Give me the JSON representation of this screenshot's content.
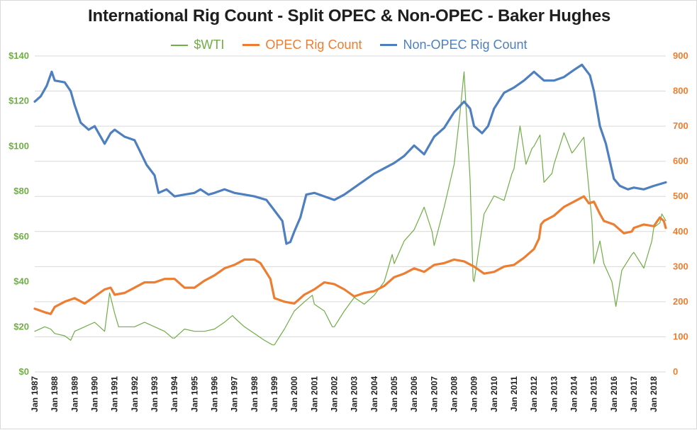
{
  "chart_data": {
    "type": "line",
    "title": "International Rig Count - Split OPEC & Non-OPEC - Baker Hughes",
    "x_tick_labels": [
      "Jan 1987",
      "Jan 1988",
      "Jan 1989",
      "Jan 1990",
      "Jan 1991",
      "Jan 1992",
      "Jan 1993",
      "Jan 1994",
      "Jan 1995",
      "Jan 1996",
      "Jan 1997",
      "Jan 1998",
      "Jan 1999",
      "Jan 2000",
      "Jan 2001",
      "Jan 2002",
      "Jan 2003",
      "Jan 2004",
      "Jan 2005",
      "Jan 2006",
      "Jan 2007",
      "Jan 2008",
      "Jan 2009",
      "Jan 2010",
      "Jan 2011",
      "Jan 2012",
      "Jan 2013",
      "Jan 2014",
      "Jan 2015",
      "Jan 2016",
      "Jan 2017",
      "Jan 2018"
    ],
    "x_range": [
      1987.0,
      2018.6
    ],
    "y_left": {
      "range": [
        0,
        140
      ],
      "ticks": [
        0,
        20,
        40,
        60,
        80,
        100,
        120,
        140
      ],
      "tick_labels": [
        "$0",
        "$20",
        "$40",
        "$60",
        "$80",
        "$100",
        "$120",
        "$140"
      ],
      "unit": "$"
    },
    "y_right": {
      "range": [
        0,
        900
      ],
      "ticks": [
        0,
        100,
        200,
        300,
        400,
        500,
        600,
        700,
        800,
        900
      ],
      "tick_labels": [
        "0",
        "100",
        "200",
        "300",
        "400",
        "500",
        "600",
        "700",
        "800",
        "900"
      ]
    },
    "series": [
      {
        "name": "$WTI",
        "axis": "left",
        "color": "#70ad47",
        "width": 1.2,
        "points": [
          [
            1987.0,
            18
          ],
          [
            1987.5,
            20
          ],
          [
            1987.8,
            19
          ],
          [
            1988.0,
            17
          ],
          [
            1988.5,
            16
          ],
          [
            1988.8,
            14
          ],
          [
            1989.0,
            18
          ],
          [
            1989.5,
            20
          ],
          [
            1990.0,
            22
          ],
          [
            1990.5,
            18
          ],
          [
            1990.75,
            35
          ],
          [
            1991.0,
            26
          ],
          [
            1991.2,
            20
          ],
          [
            1991.5,
            20
          ],
          [
            1992.0,
            20
          ],
          [
            1992.5,
            22
          ],
          [
            1993.0,
            20
          ],
          [
            1993.5,
            18
          ],
          [
            1993.9,
            15
          ],
          [
            1994.0,
            15
          ],
          [
            1994.5,
            19
          ],
          [
            1995.0,
            18
          ],
          [
            1995.5,
            18
          ],
          [
            1996.0,
            19
          ],
          [
            1996.5,
            22
          ],
          [
            1996.9,
            25
          ],
          [
            1997.0,
            24
          ],
          [
            1997.5,
            20
          ],
          [
            1998.0,
            17
          ],
          [
            1998.5,
            14
          ],
          [
            1998.9,
            12
          ],
          [
            1999.0,
            12
          ],
          [
            1999.5,
            19
          ],
          [
            2000.0,
            27
          ],
          [
            2000.5,
            31
          ],
          [
            2000.9,
            34
          ],
          [
            2001.0,
            30
          ],
          [
            2001.5,
            27
          ],
          [
            2001.9,
            20
          ],
          [
            2002.0,
            20
          ],
          [
            2002.5,
            27
          ],
          [
            2003.0,
            33
          ],
          [
            2003.5,
            30
          ],
          [
            2004.0,
            34
          ],
          [
            2004.5,
            40
          ],
          [
            2004.9,
            52
          ],
          [
            2005.0,
            48
          ],
          [
            2005.5,
            58
          ],
          [
            2006.0,
            63
          ],
          [
            2006.5,
            73
          ],
          [
            2006.9,
            62
          ],
          [
            2007.0,
            56
          ],
          [
            2007.5,
            73
          ],
          [
            2008.0,
            92
          ],
          [
            2008.3,
            115
          ],
          [
            2008.5,
            133
          ],
          [
            2008.8,
            85
          ],
          [
            2008.95,
            41
          ],
          [
            2009.0,
            40
          ],
          [
            2009.5,
            70
          ],
          [
            2010.0,
            78
          ],
          [
            2010.5,
            76
          ],
          [
            2010.9,
            88
          ],
          [
            2011.0,
            90
          ],
          [
            2011.3,
            109
          ],
          [
            2011.6,
            92
          ],
          [
            2011.9,
            99
          ],
          [
            2012.0,
            100
          ],
          [
            2012.3,
            105
          ],
          [
            2012.5,
            84
          ],
          [
            2012.9,
            88
          ],
          [
            2013.0,
            92
          ],
          [
            2013.5,
            106
          ],
          [
            2013.9,
            97
          ],
          [
            2014.0,
            98
          ],
          [
            2014.5,
            104
          ],
          [
            2014.9,
            67
          ],
          [
            2015.0,
            48
          ],
          [
            2015.3,
            58
          ],
          [
            2015.5,
            48
          ],
          [
            2015.9,
            40
          ],
          [
            2016.1,
            29
          ],
          [
            2016.4,
            45
          ],
          [
            2016.9,
            52
          ],
          [
            2017.0,
            53
          ],
          [
            2017.5,
            46
          ],
          [
            2017.9,
            58
          ],
          [
            2018.0,
            64
          ],
          [
            2018.3,
            66
          ],
          [
            2018.4,
            70
          ],
          [
            2018.6,
            67
          ]
        ]
      },
      {
        "name": "OPEC Rig Count",
        "axis": "right",
        "color": "#ed7d31",
        "width": 3.2,
        "points": [
          [
            1987.0,
            180
          ],
          [
            1987.5,
            170
          ],
          [
            1987.8,
            165
          ],
          [
            1988.0,
            185
          ],
          [
            1988.5,
            200
          ],
          [
            1989.0,
            210
          ],
          [
            1989.5,
            195
          ],
          [
            1990.0,
            215
          ],
          [
            1990.5,
            235
          ],
          [
            1990.8,
            240
          ],
          [
            1991.0,
            220
          ],
          [
            1991.5,
            225
          ],
          [
            1992.0,
            240
          ],
          [
            1992.5,
            255
          ],
          [
            1993.0,
            255
          ],
          [
            1993.5,
            265
          ],
          [
            1994.0,
            265
          ],
          [
            1994.5,
            240
          ],
          [
            1995.0,
            240
          ],
          [
            1995.5,
            260
          ],
          [
            1996.0,
            275
          ],
          [
            1996.5,
            295
          ],
          [
            1997.0,
            305
          ],
          [
            1997.5,
            320
          ],
          [
            1998.0,
            320
          ],
          [
            1998.3,
            310
          ],
          [
            1998.8,
            265
          ],
          [
            1999.0,
            210
          ],
          [
            1999.5,
            200
          ],
          [
            2000.0,
            195
          ],
          [
            2000.5,
            220
          ],
          [
            2001.0,
            235
          ],
          [
            2001.5,
            255
          ],
          [
            2002.0,
            250
          ],
          [
            2002.5,
            235
          ],
          [
            2003.0,
            215
          ],
          [
            2003.5,
            225
          ],
          [
            2004.0,
            230
          ],
          [
            2004.5,
            245
          ],
          [
            2005.0,
            270
          ],
          [
            2005.5,
            280
          ],
          [
            2006.0,
            295
          ],
          [
            2006.5,
            285
          ],
          [
            2007.0,
            305
          ],
          [
            2007.5,
            310
          ],
          [
            2008.0,
            320
          ],
          [
            2008.5,
            315
          ],
          [
            2009.0,
            300
          ],
          [
            2009.5,
            280
          ],
          [
            2010.0,
            285
          ],
          [
            2010.5,
            300
          ],
          [
            2011.0,
            305
          ],
          [
            2011.5,
            325
          ],
          [
            2012.0,
            350
          ],
          [
            2012.25,
            380
          ],
          [
            2012.35,
            420
          ],
          [
            2012.5,
            430
          ],
          [
            2013.0,
            445
          ],
          [
            2013.5,
            470
          ],
          [
            2014.0,
            485
          ],
          [
            2014.5,
            500
          ],
          [
            2014.75,
            480
          ],
          [
            2015.0,
            485
          ],
          [
            2015.3,
            450
          ],
          [
            2015.5,
            430
          ],
          [
            2016.0,
            420
          ],
          [
            2016.5,
            395
          ],
          [
            2016.9,
            400
          ],
          [
            2017.0,
            410
          ],
          [
            2017.5,
            420
          ],
          [
            2018.0,
            415
          ],
          [
            2018.3,
            440
          ],
          [
            2018.5,
            430
          ],
          [
            2018.6,
            410
          ]
        ]
      },
      {
        "name": "Non-OPEC Rig Count",
        "axis": "right",
        "color": "#4e7fbf",
        "width": 3.2,
        "points": [
          [
            1987.0,
            770
          ],
          [
            1987.3,
            785
          ],
          [
            1987.6,
            815
          ],
          [
            1987.85,
            855
          ],
          [
            1988.0,
            830
          ],
          [
            1988.5,
            825
          ],
          [
            1988.8,
            800
          ],
          [
            1989.0,
            760
          ],
          [
            1989.3,
            710
          ],
          [
            1989.7,
            690
          ],
          [
            1990.0,
            700
          ],
          [
            1990.5,
            650
          ],
          [
            1990.8,
            680
          ],
          [
            1991.0,
            690
          ],
          [
            1991.5,
            670
          ],
          [
            1992.0,
            660
          ],
          [
            1992.3,
            625
          ],
          [
            1992.6,
            590
          ],
          [
            1993.0,
            560
          ],
          [
            1993.2,
            510
          ],
          [
            1993.6,
            520
          ],
          [
            1994.0,
            500
          ],
          [
            1994.5,
            505
          ],
          [
            1995.0,
            510
          ],
          [
            1995.3,
            520
          ],
          [
            1995.7,
            505
          ],
          [
            1996.0,
            510
          ],
          [
            1996.5,
            520
          ],
          [
            1997.0,
            510
          ],
          [
            1997.5,
            505
          ],
          [
            1998.0,
            500
          ],
          [
            1998.6,
            490
          ],
          [
            1999.0,
            460
          ],
          [
            1999.4,
            430
          ],
          [
            1999.6,
            365
          ],
          [
            1999.8,
            370
          ],
          [
            2000.0,
            400
          ],
          [
            2000.3,
            440
          ],
          [
            2000.6,
            505
          ],
          [
            2001.0,
            510
          ],
          [
            2001.5,
            500
          ],
          [
            2002.0,
            490
          ],
          [
            2002.5,
            505
          ],
          [
            2003.0,
            525
          ],
          [
            2003.5,
            545
          ],
          [
            2004.0,
            565
          ],
          [
            2004.5,
            580
          ],
          [
            2005.0,
            595
          ],
          [
            2005.5,
            615
          ],
          [
            2006.0,
            645
          ],
          [
            2006.5,
            620
          ],
          [
            2007.0,
            670
          ],
          [
            2007.5,
            695
          ],
          [
            2008.0,
            740
          ],
          [
            2008.5,
            770
          ],
          [
            2008.8,
            750
          ],
          [
            2009.0,
            700
          ],
          [
            2009.4,
            680
          ],
          [
            2009.7,
            700
          ],
          [
            2010.0,
            750
          ],
          [
            2010.5,
            795
          ],
          [
            2011.0,
            810
          ],
          [
            2011.5,
            830
          ],
          [
            2012.0,
            855
          ],
          [
            2012.5,
            830
          ],
          [
            2013.0,
            830
          ],
          [
            2013.5,
            840
          ],
          [
            2014.0,
            860
          ],
          [
            2014.4,
            875
          ],
          [
            2014.8,
            845
          ],
          [
            2015.0,
            800
          ],
          [
            2015.3,
            700
          ],
          [
            2015.6,
            650
          ],
          [
            2016.0,
            550
          ],
          [
            2016.3,
            530
          ],
          [
            2016.7,
            520
          ],
          [
            2017.0,
            525
          ],
          [
            2017.5,
            520
          ],
          [
            2018.0,
            530
          ],
          [
            2018.3,
            535
          ],
          [
            2018.6,
            540
          ]
        ]
      }
    ],
    "legend_position": "top-center",
    "grid": "horizontal"
  }
}
